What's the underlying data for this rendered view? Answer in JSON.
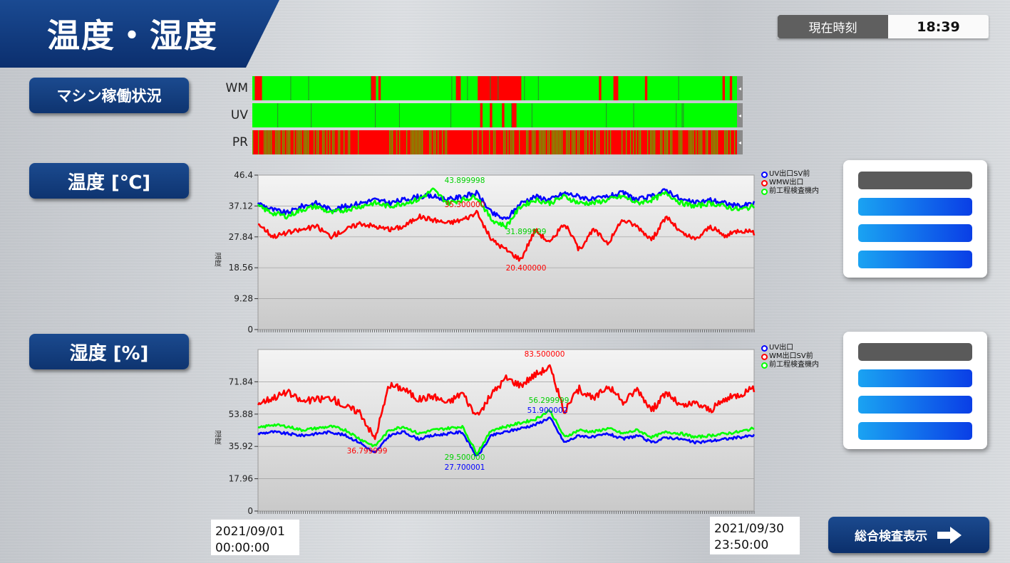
{
  "header": {
    "title": "温度・湿度"
  },
  "clock": {
    "label": "現在時刻",
    "time": "18:39"
  },
  "sections": {
    "machine_status": "マシン稼働状況",
    "temperature": "温度 [℃]",
    "humidity": "湿度 [%]"
  },
  "status_rows": [
    {
      "label": "WM",
      "end_marker": "◂"
    },
    {
      "label": "UV",
      "end_marker": "◂"
    },
    {
      "label": "PR",
      "end_marker": "◂"
    }
  ],
  "colors": {
    "run": "#00ff00",
    "stop": "#ff0000",
    "series_blue": "#0000ff",
    "series_red": "#ff0000",
    "series_green": "#00ff00",
    "nav_blue": "#0e3470"
  },
  "chart_data": [
    {
      "type": "line",
      "ylabel": "温度",
      "yticks": [
        "46.4",
        "37.12",
        "27.84",
        "18.56",
        "9.28",
        "0"
      ],
      "ylim": [
        0,
        46.4
      ],
      "legend": [
        "UV出口SV前",
        "WMW出口",
        "前工程検査機内"
      ],
      "series": [
        {
          "name": "UV出口SV前",
          "color": "#0000ff",
          "values": [
            38,
            36,
            35,
            37,
            38,
            36,
            37,
            38,
            39,
            38,
            39,
            40,
            40,
            39,
            40,
            41,
            35,
            33,
            38,
            40,
            39,
            41,
            40,
            39,
            40,
            41,
            39,
            40,
            42,
            39,
            38,
            39,
            38,
            37,
            38
          ]
        },
        {
          "name": "WMW出口",
          "color": "#ff0000",
          "values": [
            32,
            28,
            29,
            30,
            31,
            28,
            30,
            32,
            31,
            30,
            31,
            34,
            33,
            32,
            33,
            35,
            27,
            24,
            21,
            30,
            26,
            32,
            24,
            30,
            26,
            33,
            31,
            27,
            34,
            29,
            27,
            31,
            28,
            30,
            29
          ]
        },
        {
          "name": "前工程検査機内",
          "color": "#00ff00",
          "values": [
            37,
            35,
            34,
            36,
            37,
            35,
            36,
            37,
            38,
            37,
            38,
            39,
            42,
            38,
            39,
            40,
            33,
            31,
            37,
            39,
            38,
            40,
            38,
            38,
            39,
            40,
            38,
            39,
            41,
            38,
            37,
            38,
            37,
            36,
            37
          ]
        }
      ],
      "annotations": [
        {
          "text": "43.899998",
          "color": "#00d000"
        },
        {
          "text": "35.300000",
          "color": "#ff0000"
        },
        {
          "text": "31.899999",
          "color": "#00d000"
        },
        {
          "text": "20.400000",
          "color": "#ff0000"
        }
      ]
    },
    {
      "type": "line",
      "ylabel": "湿度",
      "yticks": [
        "71.84",
        "53.88",
        "35.92",
        "17.96",
        "0"
      ],
      "ylim": [
        0,
        89.8
      ],
      "legend": [
        "UV出口",
        "WM出口SV前",
        "前工程検査機内"
      ],
      "series": [
        {
          "name": "UV出口",
          "color": "#0000ff",
          "values": [
            43,
            44,
            43,
            42,
            43,
            44,
            42,
            38,
            32,
            42,
            44,
            40,
            42,
            43,
            44,
            30,
            42,
            44,
            46,
            48,
            52,
            38,
            42,
            41,
            43,
            40,
            42,
            38,
            41,
            40,
            38,
            39,
            40,
            41,
            42
          ]
        },
        {
          "name": "WM出口SV前",
          "color": "#ff0000",
          "values": [
            60,
            63,
            66,
            61,
            62,
            63,
            58,
            55,
            40,
            70,
            68,
            62,
            64,
            60,
            66,
            52,
            65,
            74,
            70,
            76,
            80,
            55,
            68,
            62,
            70,
            60,
            68,
            56,
            66,
            58,
            60,
            56,
            62,
            65,
            68
          ]
        },
        {
          "name": "前工程検査機内",
          "color": "#00ff00",
          "values": [
            46,
            48,
            47,
            45,
            46,
            47,
            45,
            40,
            36,
            45,
            47,
            43,
            45,
            46,
            47,
            32,
            45,
            47,
            49,
            51,
            56,
            41,
            45,
            44,
            46,
            43,
            45,
            41,
            44,
            43,
            41,
            42,
            43,
            44,
            46
          ]
        }
      ],
      "annotations": [
        {
          "text": "83.500000",
          "color": "#ff0000"
        },
        {
          "text": "56.299999",
          "color": "#00d000"
        },
        {
          "text": "51.900002",
          "color": "#0000ff"
        },
        {
          "text": "36.799999",
          "color": "#ff0000"
        },
        {
          "text": "29.500000",
          "color": "#00d000"
        },
        {
          "text": "27.700001",
          "color": "#0000ff"
        }
      ]
    }
  ],
  "range": {
    "start": "2021/09/01\n00:00:00",
    "end": "2021/09/30\n23:50:00"
  },
  "overall_button": {
    "label": "総合検査表示",
    "icon": "arrow-right-icon"
  }
}
